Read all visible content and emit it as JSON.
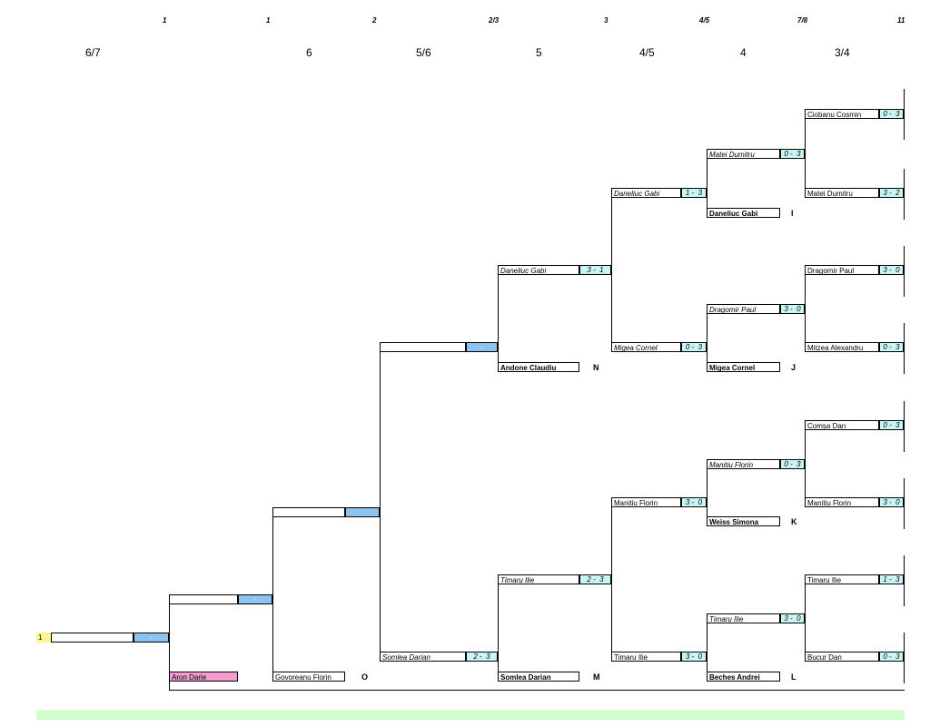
{
  "top_ticks": [
    "1",
    "1",
    "2",
    "2/3",
    "3",
    "4/5",
    "7/8",
    "11"
  ],
  "column_headers": [
    "6/7",
    "6",
    "5/6",
    "5",
    "4/5",
    "4",
    "3/4"
  ],
  "seed_number": "1",
  "round1": [
    {
      "name": "Ciobanu Cosmin",
      "score": "0 -  3"
    },
    {
      "name": "Matei Dumitru",
      "score": "3 -  2"
    },
    {
      "name": "Dragomir Paul",
      "score": "3 -  0"
    },
    {
      "name": "Mitzea Alexandru",
      "score": "0 -  3"
    },
    {
      "name": "Comșa Dan",
      "score": "0 -  3"
    },
    {
      "name": "Manitiu Florin",
      "score": "3 -  0"
    },
    {
      "name": "Timaru Ilie",
      "score": "1 -  3"
    },
    {
      "name": "Bucur Dan",
      "score": "0 -  3"
    }
  ],
  "round2": [
    {
      "name": "Matei Dumitru",
      "score": "0 -  3"
    },
    {
      "name": "Dragomir Paul",
      "score": "3 -  0"
    },
    {
      "name": "Manitiu Florin",
      "score": "0 -  3"
    },
    {
      "name": "Timaru Ilie",
      "score": "3 -  0"
    }
  ],
  "round2_incoming": [
    {
      "name": "Daneliuc Gabi",
      "letter": "I"
    },
    {
      "name": "Migea Cornel",
      "letter": "J"
    },
    {
      "name": "Weiss Simona",
      "letter": "K"
    },
    {
      "name": "Beches Andrei",
      "letter": "L"
    }
  ],
  "round3": [
    {
      "name": "Daneliuc Gabi",
      "score": "1 -  3"
    },
    {
      "name": "Migea Cornel",
      "score": "0 -  3"
    },
    {
      "name": "Manitiu Florin",
      "score": "3 -  0"
    },
    {
      "name": "Timaru Ilie",
      "score": "3 -  0"
    }
  ],
  "round4": [
    {
      "name": "Daneliuc Gabi",
      "score": "3 -  1"
    },
    {
      "name": "Timaru Ilie",
      "score": "2 -  3"
    }
  ],
  "round4_incoming": [
    {
      "name": "Andone Claudiu",
      "letter": "N"
    },
    {
      "name": "Somlea Darian",
      "letter": "M"
    }
  ],
  "round5": [
    {
      "name": "",
      "score": "-"
    },
    {
      "name": "Somlea Darian",
      "score": "2 -  3"
    }
  ],
  "round6": {
    "name": "",
    "score": ""
  },
  "govoreanu": {
    "name": "Govoreanu Florin",
    "letter": "O"
  },
  "round7": {
    "name": "",
    "score": "-"
  },
  "aron": {
    "name": "Aron Darie"
  },
  "final": {
    "name": "",
    "score": "-"
  },
  "colors": {
    "score_cell": "#c8f5f5",
    "pending_cell": "#8cc4ef",
    "pink": "#f59cd1",
    "yellow": "#fff58f",
    "green": "#ccffcc"
  }
}
